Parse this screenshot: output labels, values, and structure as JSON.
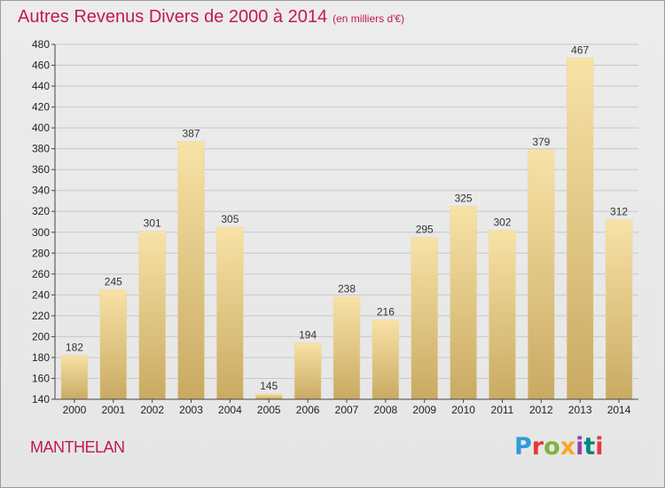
{
  "title": "Autres Revenus Divers de 2000 à 2014",
  "subtitle": "(en milliers d'€)",
  "commune": "MANTHELAN",
  "logo": "Proxiti",
  "colors": {
    "title": "#c2185b",
    "bar_light": "#f8e2a6",
    "bar_dark": "#c9aa63",
    "grid": "#c8c8c8",
    "background": "#e8e8e8"
  },
  "chart_data": {
    "type": "bar",
    "title": "Autres Revenus Divers de 2000 à 2014",
    "subtitle": "(en milliers d'€)",
    "categories": [
      "2000",
      "2001",
      "2002",
      "2003",
      "2004",
      "2005",
      "2006",
      "2007",
      "2008",
      "2009",
      "2010",
      "2011",
      "2012",
      "2013",
      "2014"
    ],
    "values": [
      182,
      245,
      301,
      387,
      305,
      145,
      194,
      238,
      216,
      295,
      325,
      302,
      379,
      467,
      312
    ],
    "ylim": [
      140,
      480
    ],
    "yticks": [
      140,
      160,
      180,
      200,
      220,
      240,
      260,
      280,
      300,
      320,
      340,
      360,
      380,
      400,
      420,
      440,
      460,
      480
    ],
    "grid": true,
    "data_labels": true,
    "legend": "none"
  }
}
